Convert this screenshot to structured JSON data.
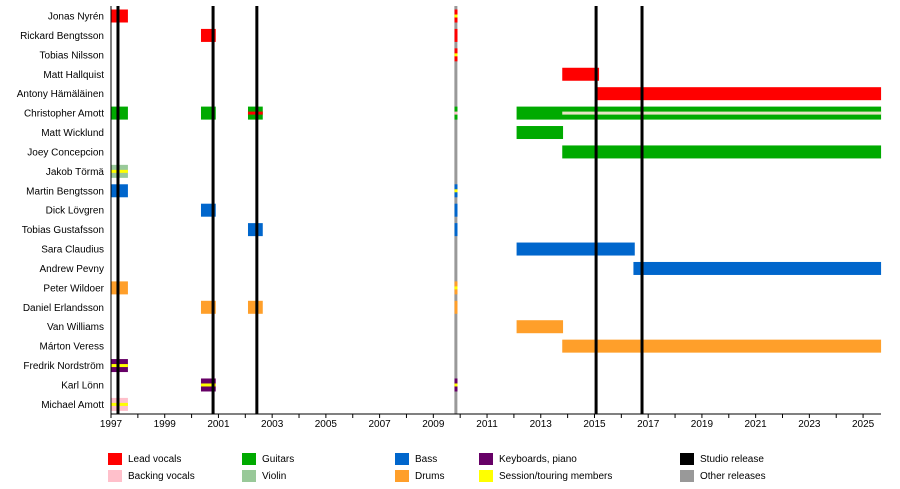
{
  "chart_data": {
    "type": "timeline",
    "xlim": [
      1997,
      2025.67
    ],
    "x_ticks": [
      1997,
      1999,
      2001,
      2003,
      2005,
      2007,
      2009,
      2011,
      2013,
      2015,
      2017,
      2019,
      2021,
      2023,
      2025
    ],
    "colors": {
      "lead_vocals": "#ff0000",
      "backing_vocals": "#ffc0cb",
      "guitars": "#00aa00",
      "violin": "#99c999",
      "bass": "#0066cc",
      "drums": "#ff9f2a",
      "keyboards": "#660066",
      "session": "#ffff00",
      "studio": "#000000",
      "other": "#999999",
      "pale": "#e8e4c4"
    },
    "members": [
      "Jonas Nyrén",
      "Rickard Bengtsson",
      "Tobias Nilsson",
      "Matt Hallquist",
      "Antony Hämäläinen",
      "Christopher Amott",
      "Matt Wicklund",
      "Joey Concepcion",
      "Jakob Törmä",
      "Martin Bengtsson",
      "Dick Lövgren",
      "Tobias Gustafsson",
      "Sara Claudius",
      "Andrew Pevny",
      "Peter Wildoer",
      "Daniel Erlandsson",
      "Van Williams",
      "Márton Veress",
      "Fredrik Nordström",
      "Karl Lönn",
      "Michael Amott"
    ],
    "bars": [
      [
        0,
        1997,
        1997.63,
        "lead_vocals",
        null
      ],
      [
        1,
        2000.35,
        2000.9,
        "lead_vocals",
        null
      ],
      [
        3,
        2013.8,
        2015.17,
        "lead_vocals",
        null
      ],
      [
        4,
        2015.1,
        2025.67,
        "lead_vocals",
        null
      ],
      [
        5,
        1997,
        1997.63,
        "guitars",
        null
      ],
      [
        5,
        2000.35,
        2000.9,
        "guitars",
        null
      ],
      [
        5,
        2002.1,
        2002.65,
        "guitars",
        "lead_vocals"
      ],
      [
        5,
        2012.1,
        2025.67,
        "guitars",
        null
      ],
      [
        5,
        2013.8,
        2025.67,
        null,
        "pale"
      ],
      [
        6,
        2012.1,
        2013.83,
        "guitars",
        null
      ],
      [
        7,
        2013.8,
        2025.67,
        "guitars",
        null
      ],
      [
        8,
        1997,
        1997.63,
        "violin",
        "session"
      ],
      [
        9,
        1997,
        1997.63,
        "bass",
        null
      ],
      [
        10,
        2000.35,
        2000.9,
        "bass",
        null
      ],
      [
        11,
        2002.1,
        2002.65,
        "bass",
        null
      ],
      [
        12,
        2012.1,
        2016.5,
        "bass",
        null
      ],
      [
        13,
        2016.45,
        2025.67,
        "bass",
        null
      ],
      [
        14,
        1997,
        1997.63,
        "drums",
        null
      ],
      [
        15,
        2000.35,
        2000.9,
        "drums",
        null
      ],
      [
        15,
        2002.1,
        2002.65,
        "drums",
        null
      ],
      [
        16,
        2012.1,
        2013.83,
        "drums",
        null
      ],
      [
        17,
        2013.8,
        2025.67,
        "drums",
        null
      ],
      [
        18,
        1997,
        1997.63,
        "keyboards",
        "session"
      ],
      [
        19,
        2000.35,
        2000.9,
        "keyboards",
        "session"
      ],
      [
        20,
        1997,
        1997.63,
        "backing_vocals",
        "session"
      ],
      [
        0,
        2009.79,
        2009.9,
        "lead_vocals",
        "session"
      ],
      [
        1,
        2009.79,
        2009.9,
        "lead_vocals",
        null
      ],
      [
        2,
        2009.79,
        2009.9,
        "lead_vocals",
        "session"
      ],
      [
        5,
        2009.79,
        2009.9,
        "guitars",
        "backing_vocals"
      ],
      [
        9,
        2009.79,
        2009.9,
        "bass",
        "session"
      ],
      [
        10,
        2009.79,
        2009.9,
        "bass",
        null
      ],
      [
        11,
        2009.79,
        2009.9,
        "bass",
        null
      ],
      [
        14,
        2009.79,
        2009.9,
        "drums",
        "session"
      ],
      [
        15,
        2009.79,
        2009.9,
        "drums",
        null
      ],
      [
        19,
        2009.79,
        2009.9,
        "keyboards",
        "session"
      ]
    ],
    "studio_releases": [
      1997.26,
      2000.8,
      2002.43,
      2015.06,
      2016.77
    ],
    "other_releases": [
      2009.84
    ],
    "legend": [
      {
        "key": "lead_vocals",
        "label": "Lead vocals"
      },
      {
        "key": "guitars",
        "label": "Guitars"
      },
      {
        "key": "bass",
        "label": "Bass"
      },
      {
        "key": "keyboards",
        "label": "Keyboards, piano"
      },
      {
        "key": "studio",
        "label": "Studio release"
      },
      {
        "key": "backing_vocals",
        "label": "Backing vocals"
      },
      {
        "key": "violin",
        "label": "Violin"
      },
      {
        "key": "drums",
        "label": "Drums"
      },
      {
        "key": "session",
        "label": "Session/touring members"
      },
      {
        "key": "other",
        "label": "Other releases"
      }
    ]
  }
}
